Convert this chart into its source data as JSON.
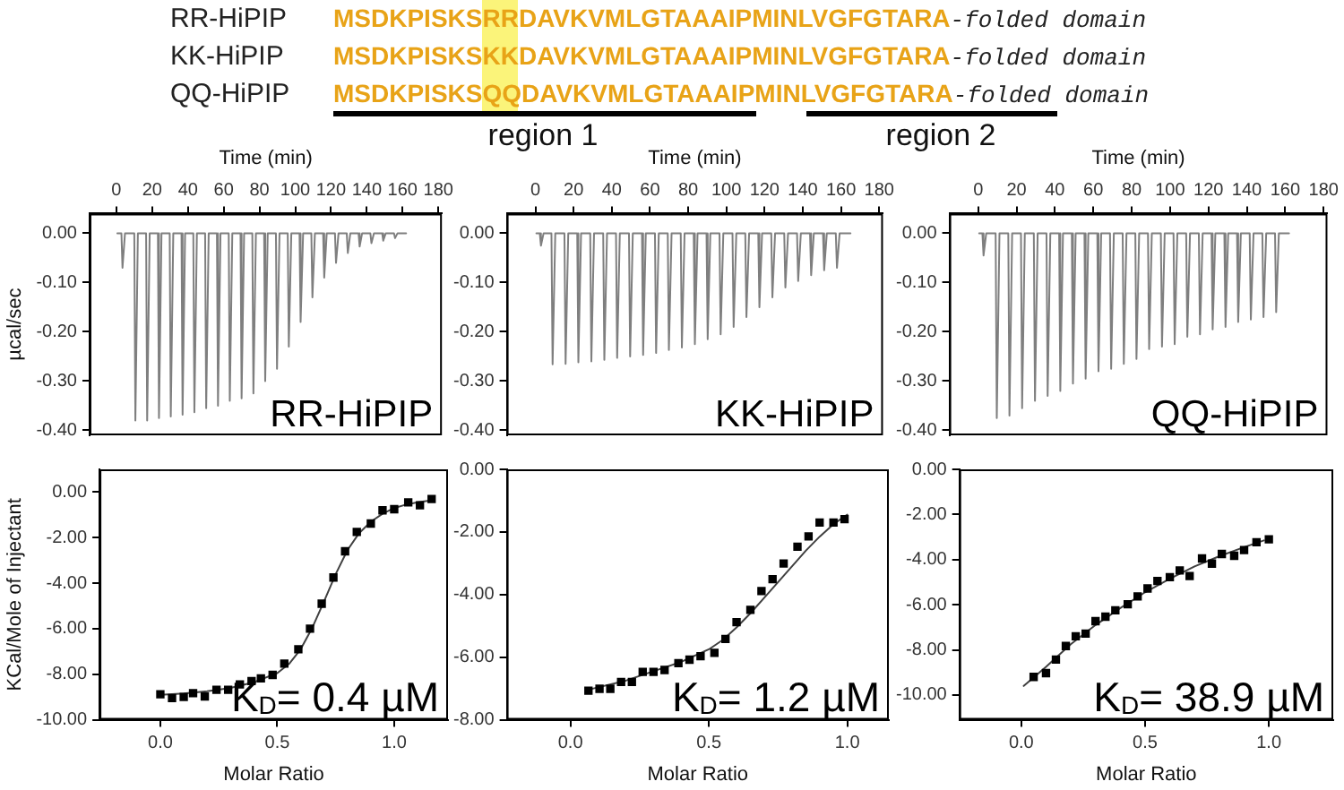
{
  "chart_data": [
    {
      "type": "other",
      "annotations": [
        "RR-HiPIP",
        "MSDKPISKSRRDAVKVMLGTAAAIPMINLVGFGTARA",
        "-folded domain",
        "KK-HiPIP",
        "MSDKPISKSKKDAVKVMLGTAAAIPMINLVGFGTARA",
        "-folded domain",
        "QQ-HiPIP",
        "MSDKPISKSQQDAVKVMLGTAAAIPMINLVGFGTARA",
        "-folded domain",
        "region 1",
        "region 2"
      ]
    },
    {
      "type": "line",
      "xlabel": "Time (min)",
      "ylabel": "µcal/sec",
      "annotations": [
        "RR-HiPIP"
      ],
      "xlim": [
        -15,
        182
      ],
      "xticks": [
        0,
        20,
        40,
        60,
        80,
        100,
        120,
        140,
        160,
        180
      ],
      "ylim": [
        -0.41,
        0.04
      ],
      "yticks": [
        {
          "value": 0,
          "label": "0.00"
        },
        {
          "value": -0.1,
          "label": "-0.10"
        },
        {
          "value": -0.2,
          "label": "-0.20"
        },
        {
          "value": -0.3,
          "label": "-0.30"
        },
        {
          "value": -0.4,
          "label": "-0.40"
        }
      ],
      "series": [
        {
          "color": "#7f7f7f",
          "x": [
            0.5,
            2.8,
            3.4,
            4.8,
            10.0,
            10.6,
            12.0,
            16.6,
            17.2,
            18.6,
            23.2,
            23.8,
            25.2,
            29.8,
            30.4,
            31.8,
            36.4,
            37.0,
            38.4,
            43.0,
            43.6,
            45.0,
            49.6,
            50.2,
            51.6,
            56.2,
            56.8,
            58.2,
            62.8,
            63.4,
            64.8,
            69.4,
            70.0,
            71.4,
            76.0,
            76.6,
            78.0,
            82.6,
            83.2,
            84.6,
            89.2,
            89.8,
            91.2,
            95.8,
            96.4,
            97.8,
            102.4,
            103.0,
            104.4,
            109.0,
            109.6,
            111.0,
            115.6,
            116.2,
            117.6,
            122.2,
            122.8,
            124.2,
            128.8,
            129.4,
            130.8,
            135.4,
            136.0,
            137.4,
            142.0,
            142.6,
            144.0,
            148.6,
            149.2,
            150.6,
            155.2,
            155.8,
            157.2,
            162
          ],
          "values": [
            0,
            0,
            -0.07,
            0,
            0,
            -0.38,
            0,
            0,
            -0.38,
            0,
            0,
            -0.375,
            0,
            0,
            -0.372,
            0,
            0,
            -0.368,
            0,
            0,
            -0.363,
            0,
            0,
            -0.355,
            0,
            0,
            -0.35,
            0,
            0,
            -0.34,
            0,
            0,
            -0.335,
            0,
            0,
            -0.325,
            0,
            0,
            -0.3,
            0,
            0,
            -0.275,
            0,
            0,
            -0.23,
            0,
            0,
            -0.18,
            0,
            0,
            -0.13,
            0,
            0,
            -0.09,
            0,
            0,
            -0.06,
            0,
            0,
            -0.04,
            0,
            0,
            -0.027,
            0,
            0,
            -0.02,
            0,
            0,
            -0.015,
            0,
            0,
            -0.01,
            0,
            0
          ]
        }
      ]
    },
    {
      "type": "line",
      "xlabel": "Time (min)",
      "annotations": [
        "KK-HiPIP"
      ],
      "xlim": [
        -15,
        182
      ],
      "xticks": [
        0,
        20,
        40,
        60,
        80,
        100,
        120,
        140,
        160,
        180
      ],
      "ylim": [
        -0.41,
        0.04
      ],
      "yticks": [
        {
          "value": 0,
          "label": "0.00"
        },
        {
          "value": -0.1,
          "label": "-0.10"
        },
        {
          "value": -0.2,
          "label": "-0.20"
        },
        {
          "value": -0.3,
          "label": "-0.30"
        },
        {
          "value": -0.4,
          "label": "-0.40"
        }
      ],
      "series": [
        {
          "color": "#7f7f7f",
          "x": [
            0.5,
            2.3,
            2.9,
            4.3,
            8.4,
            9.0,
            10.4,
            15.2,
            15.8,
            17.2,
            21.9,
            22.5,
            23.9,
            28.7,
            29.3,
            30.7,
            35.5,
            36.1,
            37.5,
            42.2,
            42.8,
            44.2,
            49.0,
            49.6,
            51.0,
            55.8,
            56.4,
            57.8,
            62.6,
            63.2,
            64.6,
            69.3,
            69.9,
            71.3,
            76.1,
            76.7,
            78.1,
            82.9,
            83.5,
            84.9,
            89.6,
            90.2,
            91.6,
            96.4,
            97.0,
            98.4,
            103.2,
            103.8,
            105.2,
            109.9,
            110.5,
            111.9,
            116.7,
            117.3,
            118.7,
            123.5,
            124.1,
            125.5,
            130.3,
            130.9,
            132.3,
            137.0,
            137.6,
            139.0,
            143.8,
            144.4,
            145.8,
            150.6,
            151.2,
            152.6,
            157.3,
            157.9,
            159.3,
            165
          ],
          "values": [
            0,
            0,
            -0.025,
            0,
            0,
            -0.266,
            0,
            0,
            -0.265,
            0,
            0,
            -0.262,
            0,
            0,
            -0.26,
            0,
            0,
            -0.257,
            0,
            0,
            -0.253,
            0,
            0,
            -0.25,
            0,
            0,
            -0.247,
            0,
            0,
            -0.243,
            0,
            0,
            -0.237,
            0,
            0,
            -0.232,
            0,
            0,
            -0.225,
            0,
            0,
            -0.215,
            0,
            0,
            -0.205,
            0,
            0,
            -0.19,
            0,
            0,
            -0.17,
            0,
            0,
            -0.15,
            0,
            0,
            -0.13,
            0,
            0,
            -0.11,
            0,
            0,
            -0.097,
            0,
            0,
            -0.085,
            0,
            0,
            -0.075,
            0,
            0,
            -0.07,
            0,
            0
          ]
        }
      ]
    },
    {
      "type": "line",
      "xlabel": "Time (min)",
      "annotations": [
        "QQ-HiPIP"
      ],
      "xlim": [
        -15,
        182
      ],
      "xticks": [
        0,
        20,
        40,
        60,
        80,
        100,
        120,
        140,
        160,
        180
      ],
      "ylim": [
        -0.41,
        0.04
      ],
      "yticks": [
        {
          "value": 0,
          "label": "0.00"
        },
        {
          "value": -0.1,
          "label": "-0.10"
        },
        {
          "value": -0.2,
          "label": "-0.20"
        },
        {
          "value": -0.3,
          "label": "-0.30"
        },
        {
          "value": -0.4,
          "label": "-0.40"
        }
      ],
      "series": [
        {
          "color": "#7f7f7f",
          "x": [
            0.5,
            2.2,
            2.8,
            4.2,
            9.1,
            9.7,
            11.1,
            15.7,
            16.3,
            17.7,
            22.3,
            22.9,
            24.3,
            29.0,
            29.6,
            31.0,
            35.6,
            36.2,
            37.6,
            42.2,
            42.8,
            44.2,
            48.8,
            49.4,
            50.8,
            55.4,
            56.0,
            57.4,
            62.1,
            62.7,
            64.1,
            68.7,
            69.3,
            70.7,
            75.3,
            75.9,
            77.3,
            81.9,
            82.5,
            83.9,
            88.5,
            89.1,
            90.5,
            95.2,
            95.8,
            97.2,
            101.8,
            102.4,
            103.8,
            108.4,
            109.0,
            110.4,
            115.0,
            115.6,
            117.0,
            121.6,
            122.2,
            123.6,
            128.3,
            128.9,
            130.3,
            134.9,
            135.5,
            136.9,
            141.5,
            142.1,
            143.5,
            148.1,
            148.7,
            150.1,
            154.7,
            155.3,
            156.7,
            162
          ],
          "values": [
            0,
            0,
            -0.045,
            0,
            0,
            -0.375,
            0,
            0,
            -0.37,
            0,
            0,
            -0.355,
            0,
            0,
            -0.34,
            0,
            0,
            -0.33,
            0,
            0,
            -0.32,
            0,
            0,
            -0.305,
            0,
            0,
            -0.295,
            0,
            0,
            -0.28,
            0,
            0,
            -0.275,
            0,
            0,
            -0.265,
            0,
            0,
            -0.255,
            0,
            0,
            -0.235,
            0,
            0,
            -0.23,
            0,
            0,
            -0.225,
            0,
            0,
            -0.21,
            0,
            0,
            -0.205,
            0,
            0,
            -0.195,
            0,
            0,
            -0.19,
            0,
            0,
            -0.18,
            0,
            0,
            -0.175,
            0,
            0,
            -0.17,
            0,
            0,
            -0.16,
            0,
            0
          ]
        }
      ]
    },
    {
      "type": "scatter",
      "xlabel": "Molar Ratio",
      "ylabel": "KCal/Mole of Injectant",
      "annotations": [
        "K$_{D}$= 0.4 µM"
      ],
      "xlim": [
        -0.26,
        1.23
      ],
      "xticks": [
        {
          "value": 0,
          "label": "0.0"
        },
        {
          "value": 0.5,
          "label": "0.5"
        },
        {
          "value": 1,
          "label": "1.0"
        }
      ],
      "ylim": [
        -10,
        1
      ],
      "yticks": [
        {
          "value": 0,
          "label": "0.00"
        },
        {
          "value": -2,
          "label": "-2.00"
        },
        {
          "value": -4,
          "label": "-4.00"
        },
        {
          "value": -6,
          "label": "-6.00"
        },
        {
          "value": -8,
          "label": "-8.00"
        },
        {
          "value": -10,
          "label": "-10.00"
        }
      ],
      "series": [
        {
          "type": "scatter",
          "marker": "square",
          "color": "#000000",
          "x": [
            0.0,
            0.05,
            0.1,
            0.14,
            0.19,
            0.24,
            0.29,
            0.34,
            0.39,
            0.43,
            0.48,
            0.53,
            0.59,
            0.64,
            0.69,
            0.74,
            0.79,
            0.84,
            0.9,
            0.95,
            1.0,
            1.06,
            1.11,
            1.16
          ],
          "values": [
            -8.88,
            -9.05,
            -9.0,
            -8.83,
            -8.98,
            -8.68,
            -8.68,
            -8.45,
            -8.3,
            -8.18,
            -8.03,
            -7.53,
            -6.9,
            -6.0,
            -4.9,
            -3.75,
            -2.6,
            -1.75,
            -1.38,
            -0.8,
            -0.75,
            -0.45,
            -0.58,
            -0.3
          ]
        },
        {
          "type": "line",
          "color": "#404040",
          "x": [
            0,
            0.1,
            0.2,
            0.3,
            0.4,
            0.5,
            0.55,
            0.6,
            0.65,
            0.7,
            0.75,
            0.8,
            0.85,
            0.9,
            0.95,
            1.0,
            1.05,
            1.1,
            1.17
          ],
          "values": [
            -8.9,
            -8.85,
            -8.75,
            -8.6,
            -8.35,
            -7.95,
            -7.55,
            -6.9,
            -5.95,
            -4.8,
            -3.6,
            -2.55,
            -1.8,
            -1.3,
            -0.95,
            -0.7,
            -0.55,
            -0.45,
            -0.35
          ]
        }
      ]
    },
    {
      "type": "scatter",
      "xlabel": "Molar Ratio",
      "annotations": [
        "K$_{D}$= 1.2 µM"
      ],
      "xlim": [
        -0.23,
        1.15
      ],
      "xticks": [
        {
          "value": 0,
          "label": "0.0"
        },
        {
          "value": 0.5,
          "label": "0.5"
        },
        {
          "value": 1,
          "label": "1.0"
        }
      ],
      "ylim": [
        -8,
        0
      ],
      "yticks": [
        {
          "value": 0,
          "label": "0.00"
        },
        {
          "value": -2,
          "label": "-2.00"
        },
        {
          "value": -4,
          "label": "-4.00"
        },
        {
          "value": -6,
          "label": "-6.00"
        },
        {
          "value": -8,
          "label": "-8.00"
        }
      ],
      "series": [
        {
          "type": "scatter",
          "marker": "square",
          "color": "#000000",
          "x": [
            0.065,
            0.105,
            0.144,
            0.183,
            0.222,
            0.261,
            0.3,
            0.34,
            0.39,
            0.43,
            0.47,
            0.52,
            0.56,
            0.6,
            0.65,
            0.69,
            0.73,
            0.77,
            0.82,
            0.86,
            0.9,
            0.95,
            0.99
          ],
          "values": [
            -7.07,
            -7.01,
            -7.01,
            -6.79,
            -6.79,
            -6.47,
            -6.47,
            -6.41,
            -6.19,
            -6.08,
            -5.97,
            -5.86,
            -5.42,
            -4.88,
            -4.49,
            -3.89,
            -3.51,
            -3.01,
            -2.47,
            -2.14,
            -1.7,
            -1.7,
            -1.59
          ]
        },
        {
          "type": "line",
          "color": "#404040",
          "x": [
            0.06,
            0.2,
            0.3,
            0.4,
            0.5,
            0.55,
            0.6,
            0.65,
            0.7,
            0.75,
            0.8,
            0.85,
            0.9,
            0.95,
            1.0
          ],
          "values": [
            -7.05,
            -6.75,
            -6.45,
            -6.15,
            -5.75,
            -5.45,
            -5.05,
            -4.6,
            -4.1,
            -3.6,
            -3.1,
            -2.6,
            -2.15,
            -1.75,
            -1.45
          ]
        }
      ]
    },
    {
      "type": "scatter",
      "xlabel": "Molar Ratio",
      "annotations": [
        "K$_{D}$= 38.9 µM"
      ],
      "xlim": [
        -0.25,
        1.26
      ],
      "xticks": [
        {
          "value": 0,
          "label": "0.0"
        },
        {
          "value": 0.5,
          "label": "0.5"
        },
        {
          "value": 1,
          "label": "1.0"
        }
      ],
      "ylim": [
        -11.1,
        0
      ],
      "yticks": [
        {
          "value": 0,
          "label": "0.00"
        },
        {
          "value": -2,
          "label": "-2.00"
        },
        {
          "value": -4,
          "label": "-4.00"
        },
        {
          "value": -6,
          "label": "-6.00"
        },
        {
          "value": -8,
          "label": "-8.00"
        },
        {
          "value": -10,
          "label": "-10.00"
        }
      ],
      "series": [
        {
          "type": "scatter",
          "marker": "square",
          "color": "#000000",
          "x": [
            0.05,
            0.1,
            0.14,
            0.18,
            0.22,
            0.26,
            0.3,
            0.34,
            0.38,
            0.43,
            0.47,
            0.51,
            0.55,
            0.6,
            0.64,
            0.68,
            0.73,
            0.77,
            0.81,
            0.86,
            0.9,
            0.95,
            1.0
          ],
          "values": [
            -9.2,
            -9.03,
            -8.43,
            -7.83,
            -7.4,
            -7.28,
            -6.73,
            -6.53,
            -6.25,
            -5.98,
            -5.63,
            -5.28,
            -4.95,
            -4.78,
            -4.48,
            -4.73,
            -3.95,
            -4.18,
            -3.75,
            -3.83,
            -3.58,
            -3.23,
            -3.1
          ]
        },
        {
          "type": "line",
          "color": "#404040",
          "x": [
            0.01,
            0.1,
            0.2,
            0.3,
            0.4,
            0.5,
            0.6,
            0.7,
            0.8,
            0.9,
            0.98
          ],
          "values": [
            -9.6,
            -8.75,
            -7.75,
            -6.9,
            -6.15,
            -5.45,
            -4.85,
            -4.3,
            -3.85,
            -3.45,
            -3.15
          ]
        }
      ]
    }
  ]
}
